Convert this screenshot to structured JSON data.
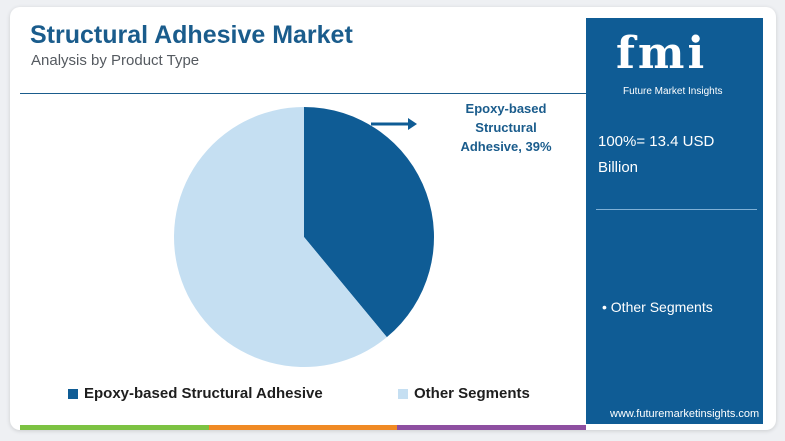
{
  "header": {
    "title": "Structural Adhesive Market",
    "subtitle": "Analysis by Product Type"
  },
  "chart_data": {
    "type": "pie",
    "categories": [
      "Epoxy-based Structural Adhesive",
      "Other Segments"
    ],
    "values": [
      39,
      61
    ],
    "colors": [
      "#0f5c95",
      "#c5dff2"
    ],
    "annotation": "Epoxy-based Structural Adhesive, 39%",
    "legend": "bottom"
  },
  "callout": {
    "line1": "Epoxy-based",
    "line2": "Structural",
    "line3": "Adhesive, 39%"
  },
  "legend": {
    "items": [
      {
        "label": "Epoxy-based Structural Adhesive",
        "color": "#0f5c95"
      },
      {
        "label": "Other Segments",
        "color": "#c5dff2"
      }
    ]
  },
  "side_panel": {
    "logo_text": "fmi",
    "logo_tagline": "Future Market Insights",
    "total": "100%= 13.4 USD Billion",
    "segment_item": "• Other Segments",
    "website": "www.futuremarketinsights.com"
  },
  "colors": {
    "brand_blue": "#0f5c95",
    "light_blue": "#c5dff2",
    "title_blue": "#1a5c8c",
    "bar_green": "#7cc242",
    "bar_orange": "#f08a24",
    "bar_purple": "#8e4fa1"
  }
}
